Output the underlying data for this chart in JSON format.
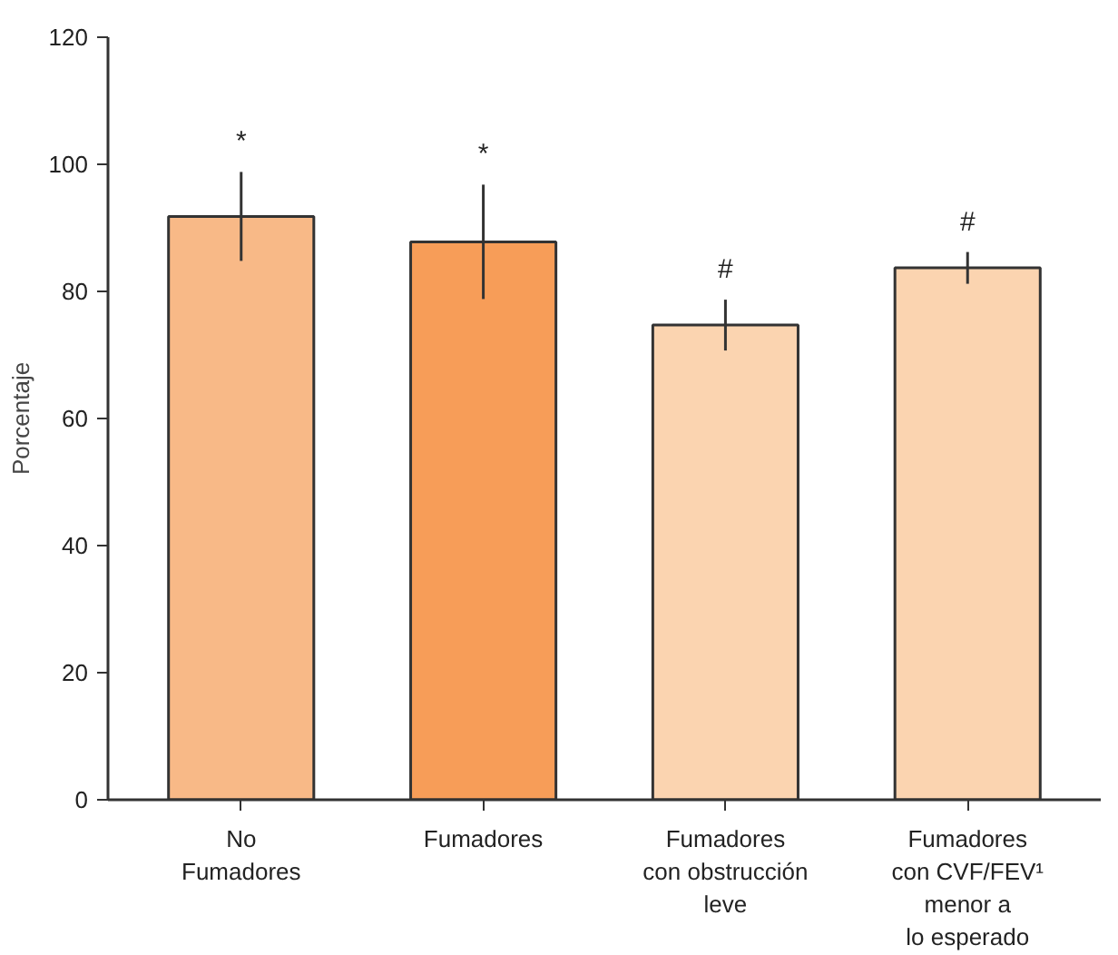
{
  "chart_data": {
    "type": "bar",
    "ylabel": "Porcentaje",
    "categories": [
      "No\nFumadores",
      "Fumadores",
      "Fumadores\ncon obstrucción\nleve",
      "Fumadores\ncon CVF/FEV¹\nmenor a\nlo esperado"
    ],
    "values": [
      91.8,
      87.8,
      74.7,
      83.7
    ],
    "errors": [
      7,
      9,
      4,
      2.5
    ],
    "colors": [
      "#f8b987",
      "#f79d58",
      "#fbd4b0",
      "#fbd4b0"
    ],
    "ylim": [
      0,
      120
    ],
    "yticks": [
      0,
      20,
      40,
      60,
      80,
      100,
      120
    ],
    "grid": false,
    "annotations": [
      "*",
      "*",
      "#",
      "#"
    ]
  }
}
